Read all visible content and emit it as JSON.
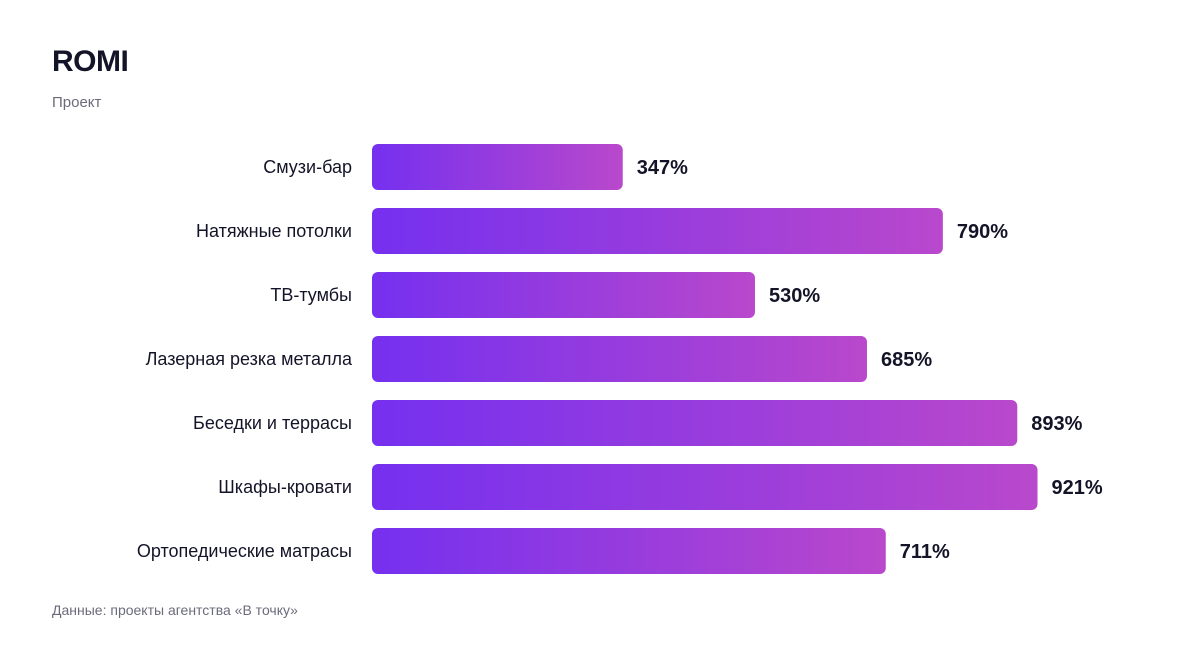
{
  "header": {
    "title": "ROMI",
    "subtitle": "Проект"
  },
  "footer": {
    "source": "Данные: проекты агентства «В точку»"
  },
  "colors": {
    "bar_start": "#7530ef",
    "bar_end": "#b948cc",
    "text_dark": "#141428",
    "text_muted": "#6b6b7b"
  },
  "chart_data": {
    "type": "bar",
    "orientation": "horizontal",
    "title": "ROMI",
    "subtitle": "Проект",
    "categories": [
      "Смузи-бар",
      "Натяжные потолки",
      "ТВ-тумбы",
      "Лазерная резка металла",
      "Беседки и террасы",
      "Шкафы-кровати",
      "Ортопедические матрасы"
    ],
    "values": [
      347,
      790,
      530,
      685,
      893,
      921,
      711
    ],
    "value_suffix": "%",
    "xlim": [
      0,
      1000
    ],
    "grid": false,
    "legend": "none"
  }
}
